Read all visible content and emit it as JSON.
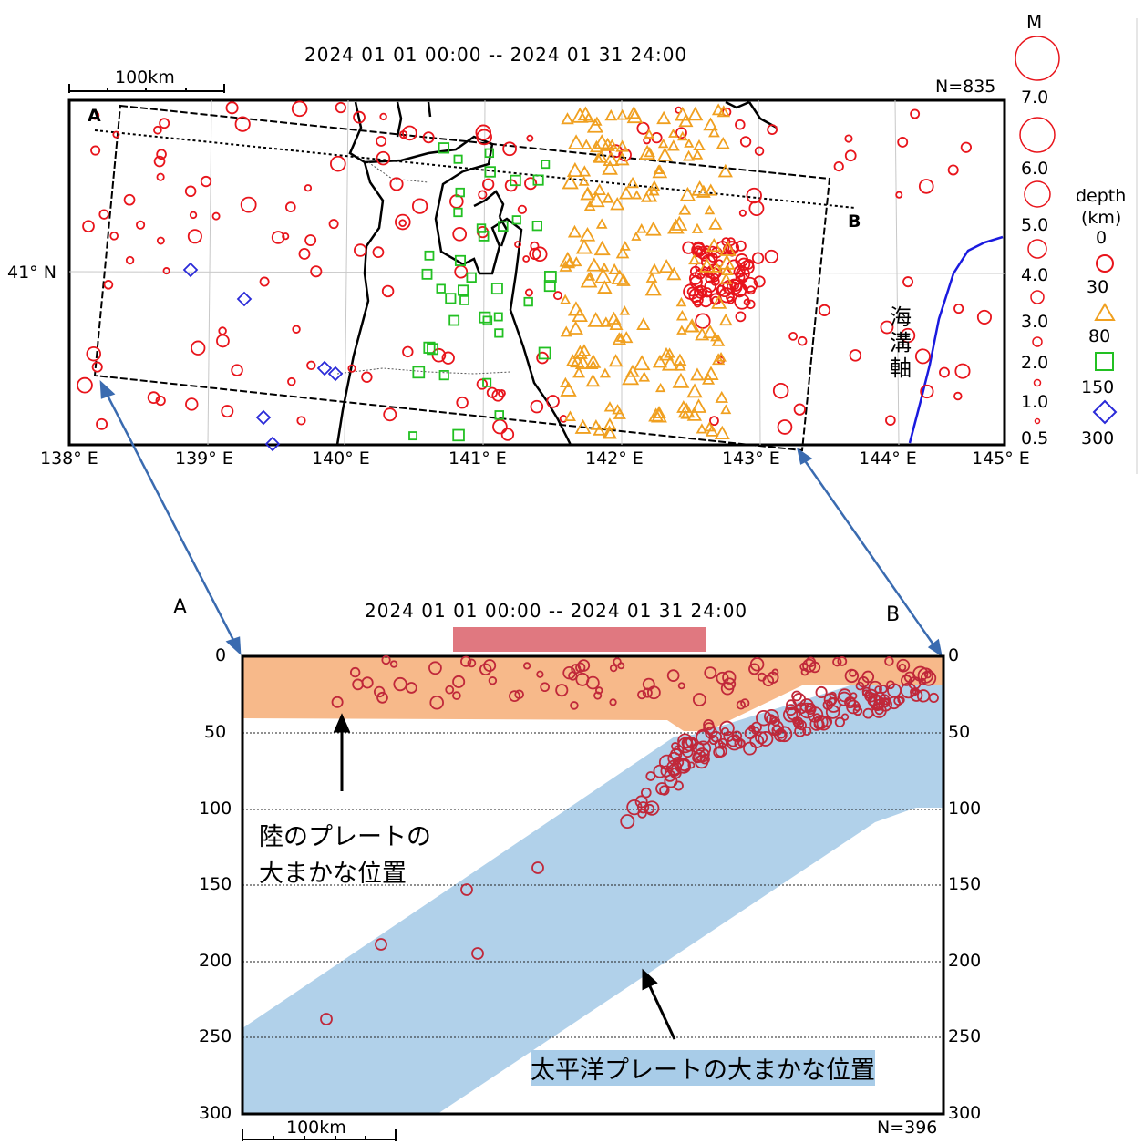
{
  "map": {
    "period": "2024 01 01 00:00 -- 2024 01 31 24:00",
    "scale_label": "100km",
    "count": "N=835",
    "lat_label": "41° N",
    "lon_labels": [
      "138° E",
      "139° E",
      "140° E",
      "141° E",
      "142° E",
      "143° E",
      "144° E",
      "145° E"
    ],
    "point_a": "A",
    "point_b": "B",
    "trench_label": "海溝軸",
    "colors": {
      "shallow": "#e8141b",
      "mid": "#f0a020",
      "deep": "#22c022",
      "deepest": "#2a2ad8",
      "trench": "#1a1adf"
    }
  },
  "legend": {
    "magnitude_title": "M",
    "magnitudes": [
      "7.0",
      "6.0",
      "5.0",
      "4.0",
      "3.0",
      "2.0",
      "1.0",
      "0.5"
    ],
    "depth_title": "depth",
    "depth_unit": "(km)",
    "depths": [
      "0",
      "30",
      "80",
      "150",
      "300"
    ]
  },
  "section": {
    "label_a": "A",
    "label_b": "B",
    "period": "2024 01 01 00:00 -- 2024 01 31 24:00",
    "depth_ticks": [
      "0",
      "50",
      "100",
      "150",
      "200",
      "250",
      "300"
    ],
    "count": "N=396",
    "scale_label": "100km",
    "land_plate_label": [
      "陸のプレートの",
      "大まかな位置"
    ],
    "pacific_plate_label": "太平洋プレートの大まかな位置",
    "colors": {
      "land_plate": "#f7b98a",
      "pacific_plate": "#a8cce8",
      "highlight_bar": "#e07880"
    }
  }
}
